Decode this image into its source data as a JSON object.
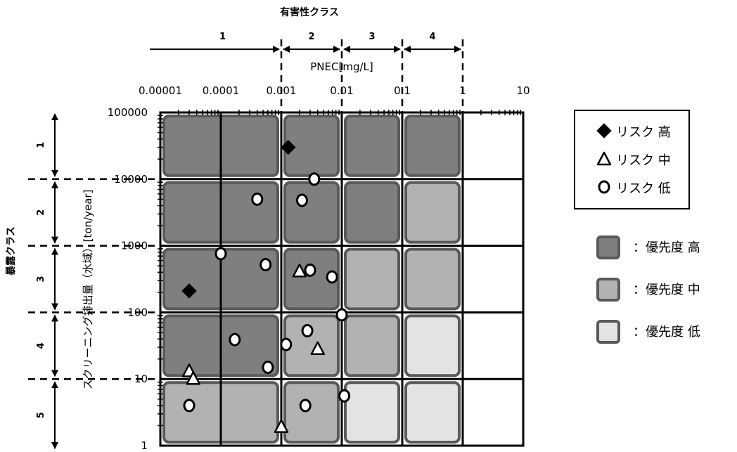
{
  "chart_data": {
    "type": "scatter",
    "title": "",
    "xlabel": "PNEC[mg/L]",
    "ylabel": "スクリーニング排出量（水域）[ton/year]",
    "x_scale": "log",
    "y_scale": "log",
    "xlim": [
      1e-05,
      10
    ],
    "ylim": [
      1,
      100000
    ],
    "x_tick_labels": [
      "0.00001",
      "0.0001",
      "0.001",
      "0.01",
      "0.1",
      "1",
      "10"
    ],
    "y_tick_labels": [
      "100000",
      "10000",
      "1000",
      "100",
      "10",
      "1"
    ],
    "grid": true,
    "hazard_class_title": "有害性クラス",
    "hazard_classes": [
      "1",
      "2",
      "3",
      "4"
    ],
    "exposure_class_title": "暴露クラス",
    "exposure_classes": [
      "1",
      "2",
      "3",
      "4",
      "5"
    ],
    "priority_levels": [
      {
        "label": "：優先度 高",
        "color": "#7f7f7f"
      },
      {
        "label": "：優先度 中",
        "color": "#b2b2b2"
      },
      {
        "label": "：優先度 低",
        "color": "#e3e3e3"
      }
    ],
    "priority_matrix": [
      [
        "high",
        "high",
        "high",
        "high",
        "none"
      ],
      [
        "high",
        "high",
        "high",
        "mid",
        "none"
      ],
      [
        "high",
        "high",
        "mid",
        "mid",
        "none"
      ],
      [
        "high",
        "mid",
        "mid",
        "low",
        "none"
      ],
      [
        "mid",
        "mid",
        "low",
        "low",
        "none"
      ]
    ],
    "series": [
      {
        "name": "リスク 高",
        "marker": "diamond",
        "points": [
          {
            "x": 0.0013,
            "y": 30000
          },
          {
            "x": 3e-05,
            "y": 210
          }
        ]
      },
      {
        "name": "リスク 中",
        "marker": "triangle",
        "points": [
          {
            "x": 0.002,
            "y": 410
          },
          {
            "x": 0.004,
            "y": 28
          },
          {
            "x": 3e-05,
            "y": 13
          },
          {
            "x": 3.5e-05,
            "y": 10
          },
          {
            "x": 0.001,
            "y": 1.9
          }
        ]
      },
      {
        "name": "リスク 低",
        "marker": "circle",
        "points": [
          {
            "x": 0.0035,
            "y": 10000
          },
          {
            "x": 0.0004,
            "y": 5000
          },
          {
            "x": 0.0022,
            "y": 4800
          },
          {
            "x": 0.0001,
            "y": 760
          },
          {
            "x": 0.00055,
            "y": 520
          },
          {
            "x": 0.003,
            "y": 430
          },
          {
            "x": 0.0069,
            "y": 340
          },
          {
            "x": 0.01,
            "y": 92
          },
          {
            "x": 0.0027,
            "y": 53
          },
          {
            "x": 0.00017,
            "y": 39
          },
          {
            "x": 0.0012,
            "y": 33
          },
          {
            "x": 0.0006,
            "y": 15
          },
          {
            "x": 0.011,
            "y": 5.6
          },
          {
            "x": 3e-05,
            "y": 4
          },
          {
            "x": 0.0025,
            "y": 4
          }
        ]
      }
    ]
  }
}
